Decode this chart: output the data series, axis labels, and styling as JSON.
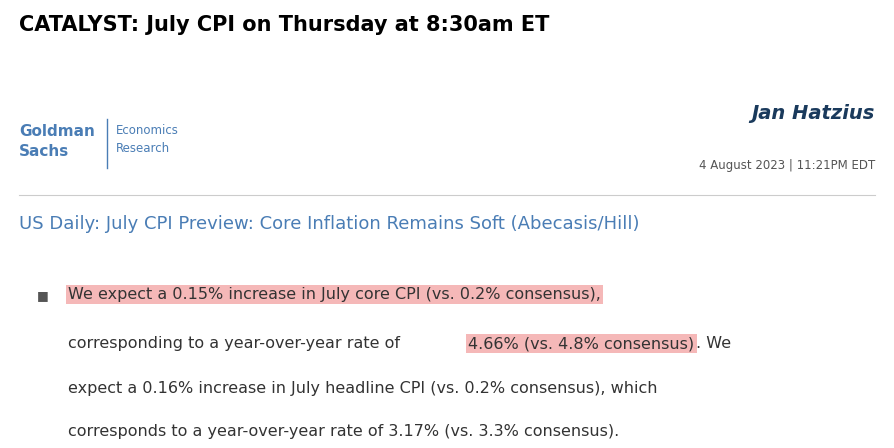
{
  "bg_color": "#ffffff",
  "catalyst_title": "CATALYST: July CPI on Thursday at 8:30am ET",
  "catalyst_color": "#000000",
  "catalyst_fontsize": 15,
  "gs_logo_color": "#4a7db5",
  "author_name": "Jan Hatzius",
  "author_color": "#1a3a5c",
  "date_line": "4 August 2023 | 11:21PM EDT",
  "date_color": "#555555",
  "divider_color": "#cccccc",
  "report_title": "US Daily: July CPI Preview: Core Inflation Remains Soft (Abecasis/Hill)",
  "report_title_color": "#4a7db5",
  "report_title_fontsize": 13,
  "bullet_color": "#555555",
  "body_text_color": "#333333",
  "highlight_color": "#f5b8b8",
  "body_fontsize": 11.5
}
